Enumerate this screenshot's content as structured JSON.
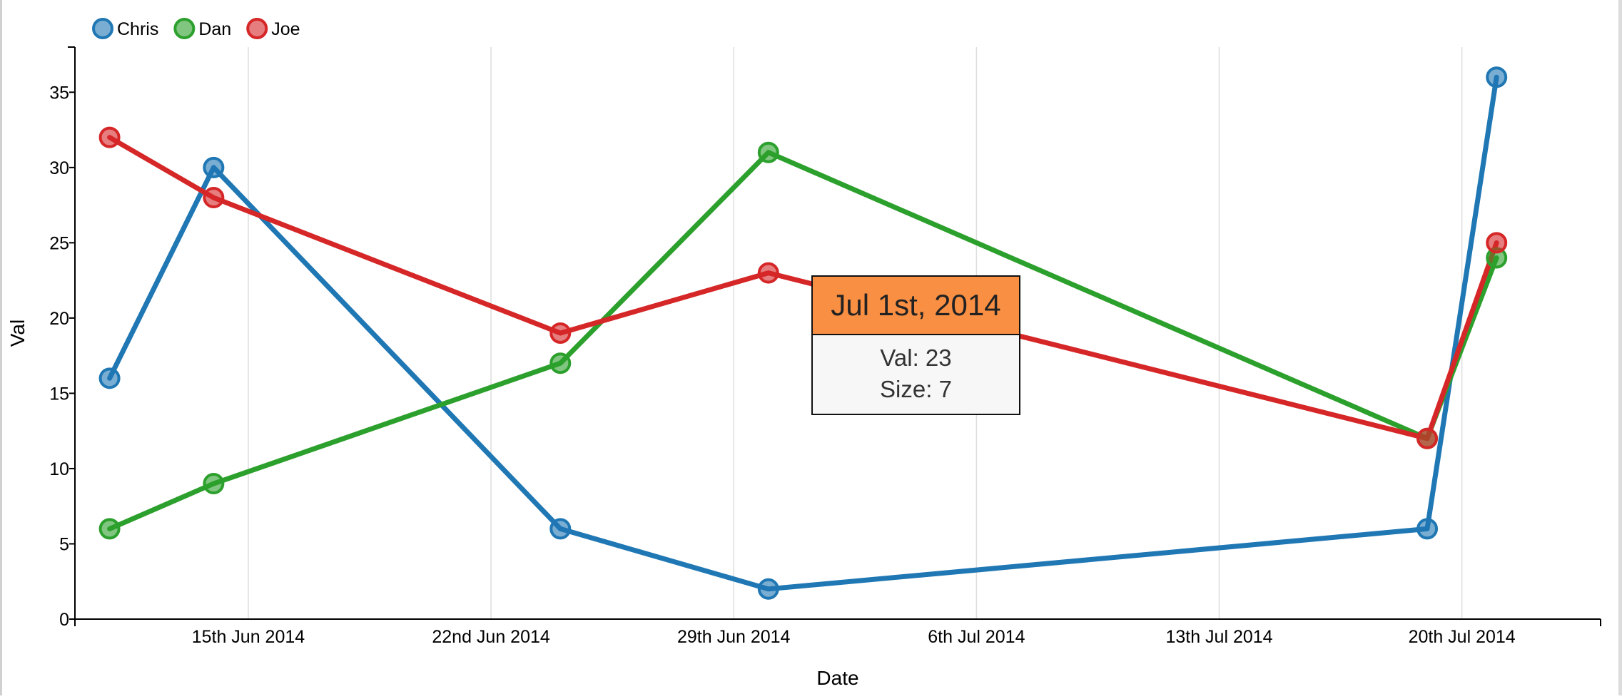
{
  "chart_data": {
    "type": "line",
    "title": "",
    "xlabel": "Date",
    "ylabel": "Val",
    "x": [
      "2014-06-11",
      "2014-06-14",
      "2014-06-24",
      "2014-06-30",
      "2014-07-19",
      "2014-07-21"
    ],
    "x_tick_labels": [
      "15th Jun 2014",
      "22nd Jun 2014",
      "29th Jun 2014",
      "6th Jul 2014",
      "13th Jul 2014",
      "20th Jul 2014"
    ],
    "x_tick_dates": [
      "2014-06-15",
      "2014-06-22",
      "2014-06-29",
      "2014-07-06",
      "2014-07-13",
      "2014-07-20"
    ],
    "xlim": [
      "2014-06-10",
      "2014-07-24"
    ],
    "y_ticks": [
      0,
      5,
      10,
      15,
      20,
      25,
      30,
      35
    ],
    "ylim": [
      0,
      38
    ],
    "grid": "vertical",
    "legend": "top-left",
    "series": [
      {
        "name": "Chris",
        "color": "#1f77b4",
        "values": [
          16,
          30,
          6,
          2,
          6,
          36
        ]
      },
      {
        "name": "Dan",
        "color": "#2ca02c",
        "values": [
          6,
          9,
          17,
          31,
          12,
          24
        ]
      },
      {
        "name": "Joe",
        "color": "#d62728",
        "values": [
          32,
          28,
          19,
          23,
          12,
          25
        ]
      }
    ],
    "tooltip": {
      "header": "Jul 1st, 2014",
      "val_label": "Val: 23",
      "size_label": "Size: 7",
      "header_color": "#f98f43"
    }
  }
}
